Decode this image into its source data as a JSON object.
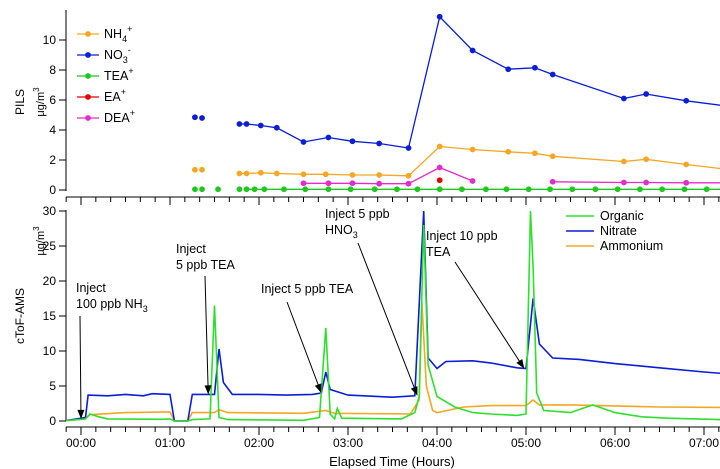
{
  "chart_data": [
    {
      "type": "line",
      "ylabel": "PILS",
      "yunit": "μg/m",
      "yunit_sup": "3",
      "ylim": [
        0,
        12
      ],
      "yticks": [
        0,
        2,
        4,
        6,
        8,
        10
      ],
      "xlim": [
        -0.25,
        7.5
      ],
      "grid": false,
      "legend_position": "top-left",
      "series": [
        {
          "name": "NH",
          "sub": "4",
          "sup": "+",
          "color": "#f5a623",
          "points": [
            [
              1.28,
              1.35
            ],
            [
              1.36,
              1.35
            ],
            [
              1.78,
              1.1
            ],
            [
              1.86,
              1.1
            ],
            [
              2.02,
              1.15
            ],
            [
              2.2,
              1.1
            ],
            [
              2.5,
              1.05
            ],
            [
              2.75,
              1.05
            ],
            [
              3.05,
              1.0
            ],
            [
              3.35,
              1.0
            ],
            [
              3.68,
              0.95
            ],
            [
              4.03,
              2.9
            ],
            [
              4.4,
              2.7
            ],
            [
              4.8,
              2.55
            ],
            [
              5.1,
              2.45
            ],
            [
              5.3,
              2.25
            ],
            [
              6.1,
              1.9
            ],
            [
              6.35,
              2.05
            ],
            [
              6.8,
              1.7
            ],
            [
              7.45,
              1.25
            ]
          ],
          "segments": [
            [
              2,
              8
            ],
            [
              8,
              19
            ]
          ]
        },
        {
          "name": "NO",
          "sub": "3",
          "sup": "-",
          "color": "#0a1ed6",
          "points": [
            [
              1.28,
              4.85
            ],
            [
              1.36,
              4.8
            ],
            [
              1.78,
              4.4
            ],
            [
              1.86,
              4.4
            ],
            [
              2.02,
              4.3
            ],
            [
              2.2,
              4.15
            ],
            [
              2.5,
              3.2
            ],
            [
              2.78,
              3.5
            ],
            [
              3.05,
              3.25
            ],
            [
              3.35,
              3.1
            ],
            [
              3.68,
              2.8
            ],
            [
              4.03,
              11.55
            ],
            [
              4.4,
              9.3
            ],
            [
              4.8,
              8.05
            ],
            [
              5.1,
              8.15
            ],
            [
              5.3,
              7.7
            ],
            [
              6.1,
              6.1
            ],
            [
              6.35,
              6.4
            ],
            [
              6.8,
              5.95
            ],
            [
              7.45,
              5.45
            ]
          ],
          "segments": [
            [
              2,
              19
            ]
          ]
        },
        {
          "name": "TEA",
          "sub": "",
          "sup": "+",
          "color": "#1ec81e",
          "points": [
            [
              1.28,
              0.05
            ],
            [
              1.36,
              0.05
            ],
            [
              1.54,
              0.05
            ],
            [
              1.78,
              0.05
            ],
            [
              1.86,
              0.05
            ],
            [
              1.95,
              0.05
            ],
            [
              2.06,
              0.05
            ],
            [
              2.28,
              0.05
            ],
            [
              2.52,
              0.05
            ],
            [
              2.78,
              0.05
            ],
            [
              3.03,
              0.05
            ],
            [
              3.3,
              0.05
            ],
            [
              3.55,
              0.05
            ],
            [
              3.78,
              0.05
            ],
            [
              4.03,
              0.05
            ],
            [
              4.28,
              0.05
            ],
            [
              4.55,
              0.05
            ],
            [
              4.78,
              0.05
            ],
            [
              5.03,
              0.05
            ],
            [
              5.27,
              0.05
            ],
            [
              5.52,
              0.05
            ],
            [
              5.78,
              0.05
            ],
            [
              6.03,
              0.05
            ],
            [
              6.28,
              0.05
            ],
            [
              6.53,
              0.05
            ],
            [
              6.78,
              0.05
            ],
            [
              7.03,
              0.05
            ],
            [
              7.28,
              0.05
            ],
            [
              7.47,
              0.05
            ]
          ],
          "segments": [
            [
              4,
              28
            ]
          ]
        },
        {
          "name": "EA",
          "sub": "",
          "sup": "+",
          "color": "#e60000",
          "points": [
            [
              4.03,
              0.65
            ]
          ],
          "segments": []
        },
        {
          "name": "DEA",
          "sub": "",
          "sup": "+",
          "color": "#e62bc8",
          "points": [
            [
              2.5,
              0.45
            ],
            [
              2.78,
              0.45
            ],
            [
              3.05,
              0.45
            ],
            [
              3.35,
              0.42
            ],
            [
              3.68,
              0.42
            ],
            [
              4.03,
              1.5
            ],
            [
              4.4,
              0.6
            ],
            [
              5.3,
              0.55
            ],
            [
              6.1,
              0.5
            ],
            [
              6.35,
              0.5
            ],
            [
              6.8,
              0.48
            ],
            [
              7.45,
              0.48
            ]
          ],
          "segments": [
            [
              0,
              6
            ],
            [
              7,
              11
            ]
          ]
        }
      ]
    },
    {
      "type": "line",
      "ylabel": "cToF-AMS",
      "yunit": "μg/m",
      "yunit_sup": "3",
      "ylim": [
        0,
        30
      ],
      "yticks": [
        0,
        5,
        10,
        15,
        20,
        25,
        30
      ],
      "xlim": [
        -0.25,
        7.5
      ],
      "xlabel": "Elapsed Time (Hours)",
      "xticks": [
        "00:00",
        "01:00",
        "02:00",
        "03:00",
        "04:00",
        "05:00",
        "06:00",
        "07:00"
      ],
      "grid": false,
      "legend_position": "top-right",
      "series": [
        {
          "name": "Organic",
          "color": "#2ee02e",
          "points": [
            [
              -0.2,
              0
            ],
            [
              0.05,
              0.3
            ],
            [
              0.1,
              1.0
            ],
            [
              0.2,
              0.6
            ],
            [
              0.3,
              0.3
            ],
            [
              0.9,
              0.25
            ],
            [
              1.0,
              0.3
            ],
            [
              1.05,
              0
            ],
            [
              1.2,
              0
            ],
            [
              1.25,
              0.2
            ],
            [
              1.45,
              0.3
            ],
            [
              1.5,
              16.5
            ],
            [
              1.55,
              0.5
            ],
            [
              1.65,
              0.2
            ],
            [
              2.5,
              0.1
            ],
            [
              2.68,
              0.5
            ],
            [
              2.75,
              13.3
            ],
            [
              2.8,
              1.0
            ],
            [
              2.85,
              0.3
            ],
            [
              2.88,
              1.8
            ],
            [
              2.93,
              0.4
            ],
            [
              3.6,
              0.3
            ],
            [
              3.75,
              1.2
            ],
            [
              3.8,
              3.5
            ],
            [
              3.85,
              28
            ],
            [
              3.9,
              8.0
            ],
            [
              4.0,
              3.5
            ],
            [
              4.2,
              2.0
            ],
            [
              4.4,
              1.2
            ],
            [
              4.6,
              1.0
            ],
            [
              4.9,
              0.8
            ],
            [
              5.0,
              1.0
            ],
            [
              5.05,
              30
            ],
            [
              5.08,
              22
            ],
            [
              5.12,
              4.0
            ],
            [
              5.2,
              1.5
            ],
            [
              5.5,
              1.2
            ],
            [
              5.75,
              2.3
            ],
            [
              6.0,
              1.2
            ],
            [
              6.3,
              0.6
            ],
            [
              6.6,
              0.4
            ],
            [
              6.9,
              0.3
            ],
            [
              7.2,
              0.2
            ],
            [
              7.5,
              0.15
            ]
          ]
        },
        {
          "name": "Nitrate",
          "color": "#0a1ed6",
          "points": [
            [
              -0.2,
              0
            ],
            [
              0.05,
              0.5
            ],
            [
              0.08,
              3.7
            ],
            [
              0.3,
              3.6
            ],
            [
              0.5,
              3.8
            ],
            [
              0.7,
              3.6
            ],
            [
              0.8,
              3.9
            ],
            [
              1.0,
              3.8
            ],
            [
              1.05,
              0
            ],
            [
              1.2,
              0
            ],
            [
              1.25,
              3.8
            ],
            [
              1.5,
              3.8
            ],
            [
              1.55,
              10.3
            ],
            [
              1.6,
              5.5
            ],
            [
              1.7,
              3.8
            ],
            [
              2.0,
              3.8
            ],
            [
              2.3,
              3.7
            ],
            [
              2.6,
              3.8
            ],
            [
              2.7,
              4.0
            ],
            [
              2.75,
              7.0
            ],
            [
              2.8,
              4.5
            ],
            [
              3.0,
              3.7
            ],
            [
              3.5,
              3.4
            ],
            [
              3.75,
              3.6
            ],
            [
              3.85,
              30
            ],
            [
              3.9,
              9.0
            ],
            [
              4.0,
              7.5
            ],
            [
              4.1,
              8.5
            ],
            [
              4.4,
              8.6
            ],
            [
              4.6,
              8.3
            ],
            [
              4.9,
              7.6
            ],
            [
              5.0,
              7.5
            ],
            [
              5.08,
              17.5
            ],
            [
              5.15,
              11
            ],
            [
              5.3,
              9.0
            ],
            [
              5.6,
              8.8
            ],
            [
              6.0,
              8.2
            ],
            [
              6.5,
              7.6
            ],
            [
              7.0,
              7.0
            ],
            [
              7.5,
              6.5
            ]
          ]
        },
        {
          "name": "Ammonium",
          "color": "#f5a623",
          "points": [
            [
              -0.2,
              0
            ],
            [
              0.05,
              0.3
            ],
            [
              0.1,
              0.9
            ],
            [
              0.5,
              1.2
            ],
            [
              1.0,
              1.3
            ],
            [
              1.05,
              0
            ],
            [
              1.2,
              0
            ],
            [
              1.25,
              1.2
            ],
            [
              1.5,
              1.2
            ],
            [
              1.55,
              1.6
            ],
            [
              1.65,
              1.2
            ],
            [
              2.5,
              1.1
            ],
            [
              2.75,
              1.5
            ],
            [
              2.85,
              1.1
            ],
            [
              3.7,
              1.0
            ],
            [
              3.8,
              3.0
            ],
            [
              3.83,
              17.0
            ],
            [
              3.88,
              5.0
            ],
            [
              3.95,
              1.5
            ],
            [
              4.0,
              1.2
            ],
            [
              4.3,
              2.0
            ],
            [
              4.6,
              2.2
            ],
            [
              5.0,
              2.2
            ],
            [
              5.08,
              3.0
            ],
            [
              5.15,
              2.3
            ],
            [
              5.5,
              2.3
            ],
            [
              6.5,
              2.0
            ],
            [
              7.5,
              1.9
            ]
          ]
        }
      ],
      "annotations": [
        {
          "lines": [
            "Inject",
            "100 ppb NH"
          ],
          "sub": "3",
          "arrow_to": [
            0.0,
            0.3
          ]
        },
        {
          "lines": [
            "Inject",
            "5 ppb TEA"
          ],
          "sub": "",
          "arrow_to": [
            1.43,
            3.8
          ]
        },
        {
          "lines": [
            "Inject 5 ppb TEA"
          ],
          "sub": "",
          "arrow_to": [
            2.7,
            4.0
          ]
        },
        {
          "lines": [
            "Inject 5 ppb",
            "HNO"
          ],
          "sub": "3",
          "arrow_to": [
            3.78,
            3.6
          ]
        },
        {
          "lines": [
            "Inject 10 ppb",
            "TEA"
          ],
          "sub": "",
          "arrow_to": [
            4.98,
            7.5
          ]
        }
      ]
    }
  ]
}
